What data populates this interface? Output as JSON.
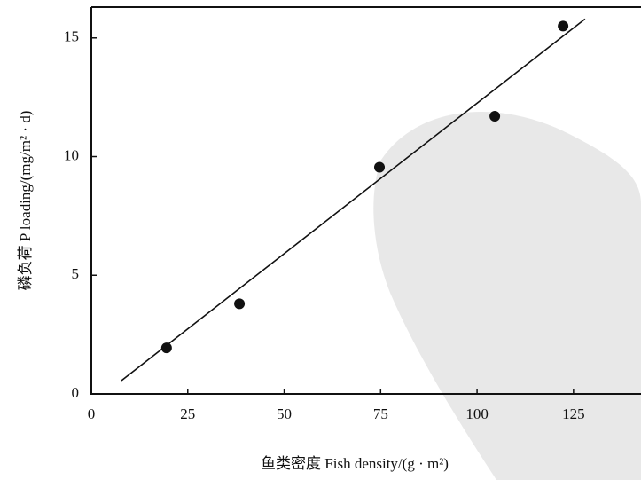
{
  "chart_data": {
    "type": "scatter",
    "x_label": "鱼类密度 Fish density/(g · m²)",
    "y_label": "磷负荷 P loading/(mg/m² · d)",
    "xlim": [
      0,
      142.5
    ],
    "ylim": [
      0,
      16.3
    ],
    "xticks": [
      0,
      25,
      50,
      75,
      100,
      125
    ],
    "yticks": [
      0,
      5,
      10,
      15
    ],
    "series": [
      {
        "mode": "markers",
        "color": "#111111",
        "x": [
          19.5,
          38.4,
          74.7,
          104.6,
          122.3
        ],
        "values": [
          1.94,
          3.8,
          9.55,
          11.7,
          15.5
        ]
      },
      {
        "mode": "line",
        "color": "#111111",
        "x": [
          7.8,
          128
        ],
        "values": [
          0.56,
          15.8
        ]
      }
    ]
  }
}
